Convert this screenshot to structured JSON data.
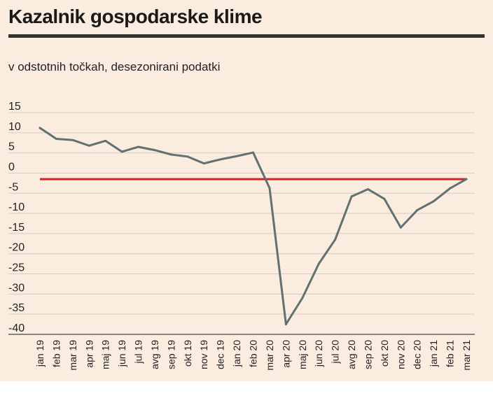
{
  "header": {
    "title": "Kazalnik gospodarske klime",
    "subtitle": "v odstotnih točkah, desezonirani podatki"
  },
  "colors": {
    "background": "#fbece0",
    "series_line": "#617071",
    "reference_line": "#d71f1f",
    "grid": "#d8ccc2"
  },
  "chart_data": {
    "type": "line",
    "title": "Kazalnik gospodarske klime",
    "subtitle": "v odstotnih točkah, desezonirani podatki",
    "xlabel": "",
    "ylabel": "",
    "ylim": [
      -40,
      15
    ],
    "yticks": [
      15,
      10,
      5,
      0,
      -5,
      -10,
      -15,
      -20,
      -25,
      -30,
      -35,
      -40
    ],
    "grid": true,
    "categories": [
      "jan 19",
      "feb 19",
      "mar 19",
      "apr 19",
      "maj 19",
      "jun 19",
      "jul 19",
      "avg 19",
      "sep 19",
      "okt 19",
      "nov 19",
      "dec 19",
      "jan 20",
      "feb 20",
      "mar 20",
      "apr 20",
      "maj 20",
      "jun 20",
      "jul 20",
      "avg 20",
      "sep 20",
      "okt 20",
      "nov 20",
      "dec 20",
      "jan 21",
      "feb 21",
      "mar 21"
    ],
    "series": [
      {
        "values": [
          11.2,
          8.5,
          8.2,
          6.8,
          8.0,
          5.3,
          6.5,
          5.7,
          4.6,
          4.1,
          2.4,
          3.4,
          4.2,
          5.1,
          -3.7,
          -37.5,
          -31.0,
          -22.5,
          -16.5,
          -5.8,
          -4.0,
          -6.4,
          -13.5,
          -9.2,
          -7.0,
          -3.8,
          -1.5
        ]
      }
    ],
    "reference_line": {
      "value": -1.5
    }
  }
}
